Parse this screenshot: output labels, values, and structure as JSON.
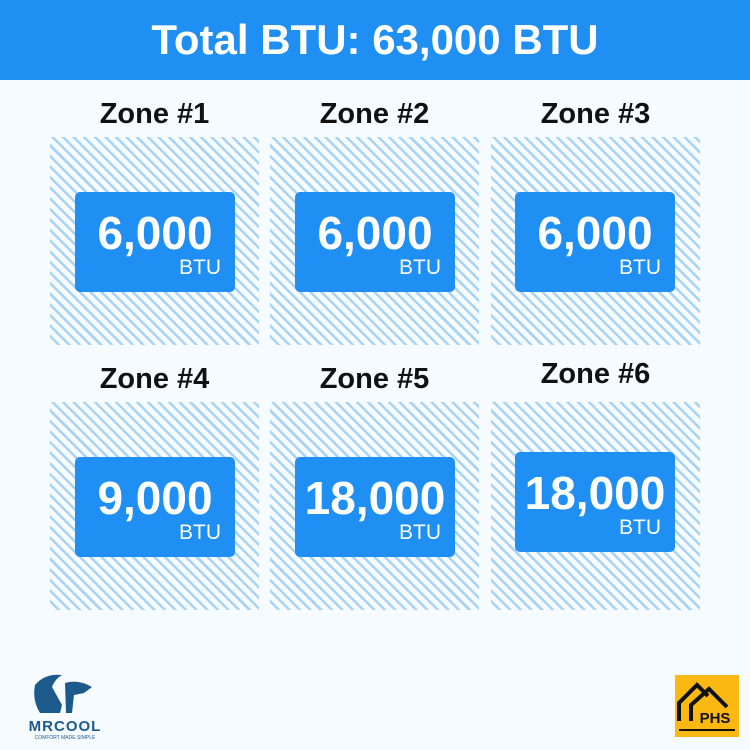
{
  "header": {
    "title": "Total BTU: 63,000 BTU"
  },
  "zones": [
    {
      "title": "Zone #1",
      "value": "6,000",
      "unit": "BTU"
    },
    {
      "title": "Zone #2",
      "value": "6,000",
      "unit": "BTU"
    },
    {
      "title": "Zone #3",
      "value": "6,000",
      "unit": "BTU"
    },
    {
      "title": "Zone #4",
      "value": "9,000",
      "unit": "BTU"
    },
    {
      "title": "Zone #5",
      "value": "18,000",
      "unit": "BTU"
    },
    {
      "title": "Zone #6",
      "value": "18,000",
      "unit": "BTU"
    }
  ],
  "logos": {
    "left": "MRCOOL",
    "left_tagline": "COMFORT MADE SIMPLE",
    "right": "PHS"
  },
  "colors": {
    "accent": "#1f8ff4",
    "hatch": "#a9d3f5",
    "phs": "#fbb813",
    "mrcool": "#1d5a8c"
  }
}
